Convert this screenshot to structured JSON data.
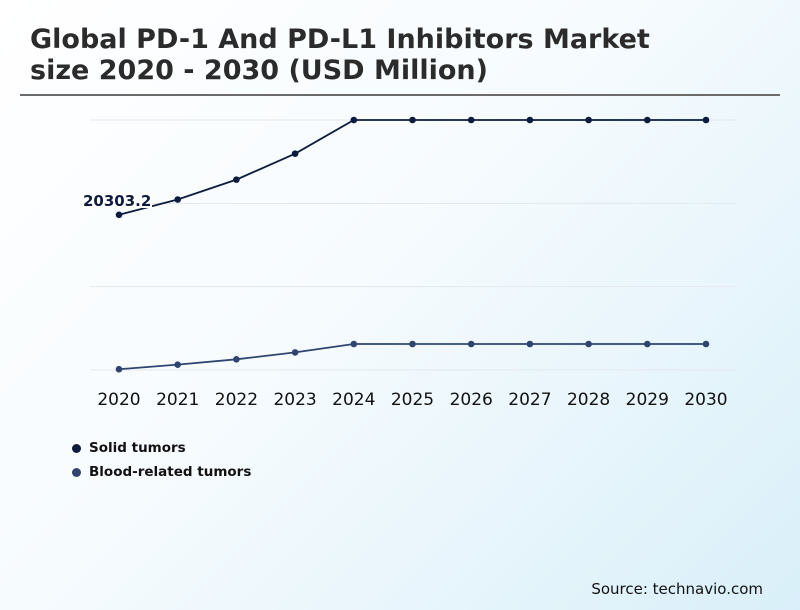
{
  "title_line1": "Global PD-1 And PD-L1 Inhibitors Market",
  "title_line2": "size 2020 - 2030 (USD Million)",
  "source": "Source: technavio.com",
  "colors": {
    "solid_tumors": "#0d1b3e",
    "blood_related_tumors": "#2f4570",
    "gridline": "#e3e8ec",
    "title_rule": "#6b6b6b"
  },
  "chart_data": {
    "type": "line",
    "x": [
      "2020",
      "2021",
      "2022",
      "2023",
      "2024",
      "2025",
      "2026",
      "2027",
      "2028",
      "2029",
      "2030"
    ],
    "series": [
      {
        "name": "Solid tumors",
        "values": [
          20303.2,
          22300,
          24900,
          28300,
          32700,
          32700,
          32700,
          32700,
          32700,
          32700,
          32700
        ],
        "annotation": "20303.2"
      },
      {
        "name": "Blood-related tumors",
        "values": [
          100,
          700,
          1400,
          2300,
          3400,
          3400,
          3400,
          3400,
          3400,
          3400,
          3400
        ]
      }
    ],
    "ylim": [
      0,
      32700
    ],
    "grid": true,
    "y_tick_labels_shown": false,
    "legend_position": "bottom-left"
  }
}
